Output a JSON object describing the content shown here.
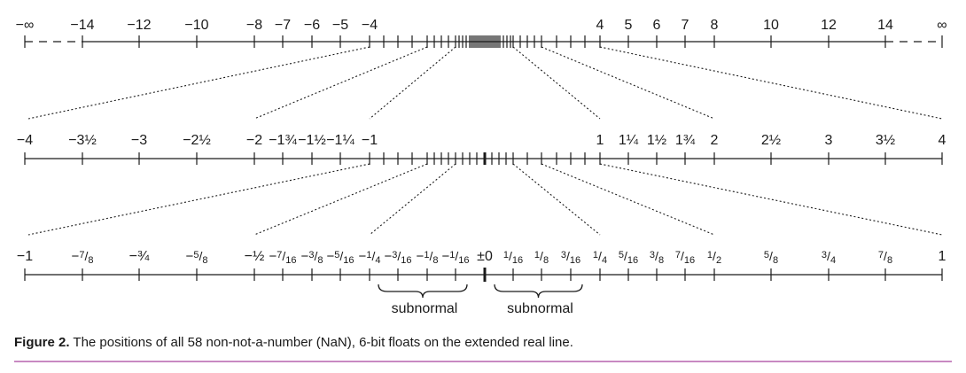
{
  "number_lines": [
    {
      "name": "extended-real-line",
      "ticks": [
        {
          "label": "−∞",
          "value": "-inf",
          "labeled": true,
          "end": true
        },
        {
          "label": "−14",
          "value": -14,
          "labeled": true
        },
        {
          "label": "−12",
          "value": -12,
          "labeled": true
        },
        {
          "label": "−10",
          "value": -10,
          "labeled": true
        },
        {
          "label": "−8",
          "value": -8,
          "labeled": true
        },
        {
          "label": "−7",
          "value": -7,
          "labeled": true
        },
        {
          "label": "−6",
          "value": -6,
          "labeled": true
        },
        {
          "label": "−5",
          "value": -5,
          "labeled": true
        },
        {
          "label": "−4",
          "value": -4,
          "labeled": true
        },
        {
          "label": "4",
          "value": 4,
          "labeled": true
        },
        {
          "label": "5",
          "value": 5,
          "labeled": true
        },
        {
          "label": "6",
          "value": 6,
          "labeled": true
        },
        {
          "label": "7",
          "value": 7,
          "labeled": true
        },
        {
          "label": "8",
          "value": 8,
          "labeled": true
        },
        {
          "label": "10",
          "value": 10,
          "labeled": true
        },
        {
          "label": "12",
          "value": 12,
          "labeled": true
        },
        {
          "label": "14",
          "value": 14,
          "labeled": true
        },
        {
          "label": "∞",
          "value": "inf",
          "labeled": true,
          "end": true
        }
      ]
    },
    {
      "name": "minus-four-to-four-line",
      "ticks": [
        {
          "label": "−4",
          "value": -4,
          "labeled": true
        },
        {
          "label": "−3½",
          "value": -3.5,
          "labeled": true
        },
        {
          "label": "−3",
          "value": -3,
          "labeled": true
        },
        {
          "label": "−2½",
          "value": -2.5,
          "labeled": true
        },
        {
          "label": "−2",
          "value": -2,
          "labeled": true
        },
        {
          "label": "−1¾",
          "value": -1.75,
          "labeled": true
        },
        {
          "label": "−1½",
          "value": -1.5,
          "labeled": true
        },
        {
          "label": "−1¼",
          "value": -1.25,
          "labeled": true
        },
        {
          "label": "−1",
          "value": -1,
          "labeled": true
        },
        {
          "label": "1",
          "value": 1,
          "labeled": true
        },
        {
          "label": "1¼",
          "value": 1.25,
          "labeled": true
        },
        {
          "label": "1½",
          "value": 1.5,
          "labeled": true
        },
        {
          "label": "1¾",
          "value": 1.75,
          "labeled": true
        },
        {
          "label": "2",
          "value": 2,
          "labeled": true
        },
        {
          "label": "2½",
          "value": 2.5,
          "labeled": true
        },
        {
          "label": "3",
          "value": 3,
          "labeled": true
        },
        {
          "label": "3½",
          "value": 3.5,
          "labeled": true
        },
        {
          "label": "4",
          "value": 4,
          "labeled": true
        }
      ]
    },
    {
      "name": "minus-one-to-one-line",
      "ticks": [
        {
          "label": "−1",
          "value": -1,
          "labeled": true
        },
        {
          "label": "−7/8",
          "value": -0.875,
          "labeled": true
        },
        {
          "label": "−¾",
          "value": -0.75,
          "labeled": true
        },
        {
          "label": "−5/8",
          "value": -0.625,
          "labeled": true
        },
        {
          "label": "−½",
          "value": -0.5,
          "labeled": true
        },
        {
          "label": "−7/16",
          "value": -0.4375,
          "labeled": true
        },
        {
          "label": "−3/8",
          "value": -0.375,
          "labeled": true
        },
        {
          "label": "−5/16",
          "value": -0.3125,
          "labeled": true
        },
        {
          "label": "−1/4",
          "value": -0.25,
          "labeled": true
        },
        {
          "label": "−3/16",
          "value": -0.1875,
          "labeled": true
        },
        {
          "label": "−1/8",
          "value": -0.125,
          "labeled": true
        },
        {
          "label": "−1/16",
          "value": -0.0625,
          "labeled": true
        },
        {
          "label": "±0",
          "value": 0,
          "labeled": true,
          "bold": true
        },
        {
          "label": "1/16",
          "value": 0.0625,
          "labeled": true
        },
        {
          "label": "1/8",
          "value": 0.125,
          "labeled": true
        },
        {
          "label": "3/16",
          "value": 0.1875,
          "labeled": true
        },
        {
          "label": "1/4",
          "value": 0.25,
          "labeled": true
        },
        {
          "label": "5/16",
          "value": 0.3125,
          "labeled": true
        },
        {
          "label": "3/8",
          "value": 0.375,
          "labeled": true
        },
        {
          "label": "7/16",
          "value": 0.4375,
          "labeled": true
        },
        {
          "label": "1/2",
          "value": 0.5,
          "labeled": true
        },
        {
          "label": "5/8",
          "value": 0.625,
          "labeled": true
        },
        {
          "label": "3/4",
          "value": 0.75,
          "labeled": true
        },
        {
          "label": "7/8",
          "value": 0.875,
          "labeled": true
        },
        {
          "label": "1",
          "value": 1,
          "labeled": true
        }
      ]
    }
  ],
  "subnormal_label": "subnormal",
  "caption": {
    "label": "Figure 2.",
    "text": "The positions of all 58 non-not-a-number (NaN), 6-bit floats on the extended real line."
  },
  "colors": {
    "ink": "#1a1a1a",
    "rule": "#c889c2"
  }
}
